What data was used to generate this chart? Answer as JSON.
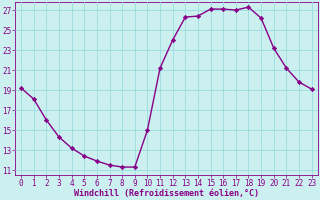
{
  "x": [
    0,
    1,
    2,
    3,
    4,
    5,
    6,
    7,
    8,
    9,
    10,
    11,
    12,
    13,
    14,
    15,
    16,
    17,
    18,
    19,
    20,
    21,
    22,
    23
  ],
  "y": [
    19.2,
    18.1,
    16.0,
    14.3,
    13.2,
    12.4,
    11.9,
    11.5,
    11.3,
    11.3,
    15.0,
    21.2,
    24.0,
    26.3,
    26.4,
    27.1,
    27.1,
    27.0,
    27.3,
    26.2,
    23.2,
    21.2,
    19.8,
    19.1
  ],
  "line_color": "#880088",
  "marker": "D",
  "marker_size": 2.2,
  "background_color": "#ccf0f0",
  "grid_color": "#99dddd",
  "xlabel": "Windchill (Refroidissement éolien,°C)",
  "xlabel_color": "#880088",
  "tick_color": "#880088",
  "xlim": [
    -0.5,
    23.5
  ],
  "ylim": [
    10.5,
    27.8
  ],
  "yticks": [
    11,
    13,
    15,
    17,
    19,
    21,
    23,
    25,
    27
  ],
  "xticks": [
    0,
    1,
    2,
    3,
    4,
    5,
    6,
    7,
    8,
    9,
    10,
    11,
    12,
    13,
    14,
    15,
    16,
    17,
    18,
    19,
    20,
    21,
    22,
    23
  ],
  "tick_fontsize": 5.5,
  "xlabel_fontsize": 6.0
}
